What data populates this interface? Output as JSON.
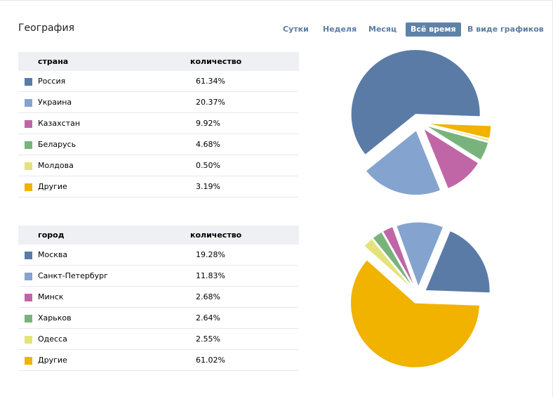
{
  "title": "География",
  "tabs": [
    {
      "label": "Сутки",
      "active": false
    },
    {
      "label": "Неделя",
      "active": false
    },
    {
      "label": "Месяц",
      "active": false
    },
    {
      "label": "Всё время",
      "active": true
    },
    {
      "label": "В виде графиков",
      "active": false
    }
  ],
  "colors": [
    "#5a7ba6",
    "#84a3cf",
    "#c066a6",
    "#79b37c",
    "#e4e27a",
    "#f1b200"
  ],
  "countries": {
    "header_name": "страна",
    "header_value": "количество",
    "rows": [
      {
        "name": "Россия",
        "value": "61.34%"
      },
      {
        "name": "Украина",
        "value": "20.37%"
      },
      {
        "name": "Казахстан",
        "value": "9.92%"
      },
      {
        "name": "Беларусь",
        "value": "4.68%"
      },
      {
        "name": "Молдова",
        "value": "0.50%"
      },
      {
        "name": "Другие",
        "value": "3.19%"
      }
    ]
  },
  "cities": {
    "header_name": "город",
    "header_value": "количество",
    "rows": [
      {
        "name": "Москва",
        "value": "19.28%"
      },
      {
        "name": "Санкт-Петербург",
        "value": "11.83%"
      },
      {
        "name": "Минск",
        "value": "2.68%"
      },
      {
        "name": "Харьков",
        "value": "2.64%"
      },
      {
        "name": "Одесса",
        "value": "2.55%"
      },
      {
        "name": "Другие",
        "value": "61.02%"
      }
    ]
  },
  "chart_data": [
    {
      "type": "pie",
      "title": "страна",
      "categories": [
        "Россия",
        "Украина",
        "Казахстан",
        "Беларусь",
        "Молдова",
        "Другие"
      ],
      "values": [
        61.34,
        20.37,
        9.92,
        4.68,
        0.5,
        3.19
      ],
      "exploded": true
    },
    {
      "type": "pie",
      "title": "город",
      "categories": [
        "Москва",
        "Санкт-Петербург",
        "Минск",
        "Харьков",
        "Одесса",
        "Другие"
      ],
      "values": [
        19.28,
        11.83,
        2.68,
        2.64,
        2.55,
        61.02
      ],
      "exploded": true
    }
  ]
}
